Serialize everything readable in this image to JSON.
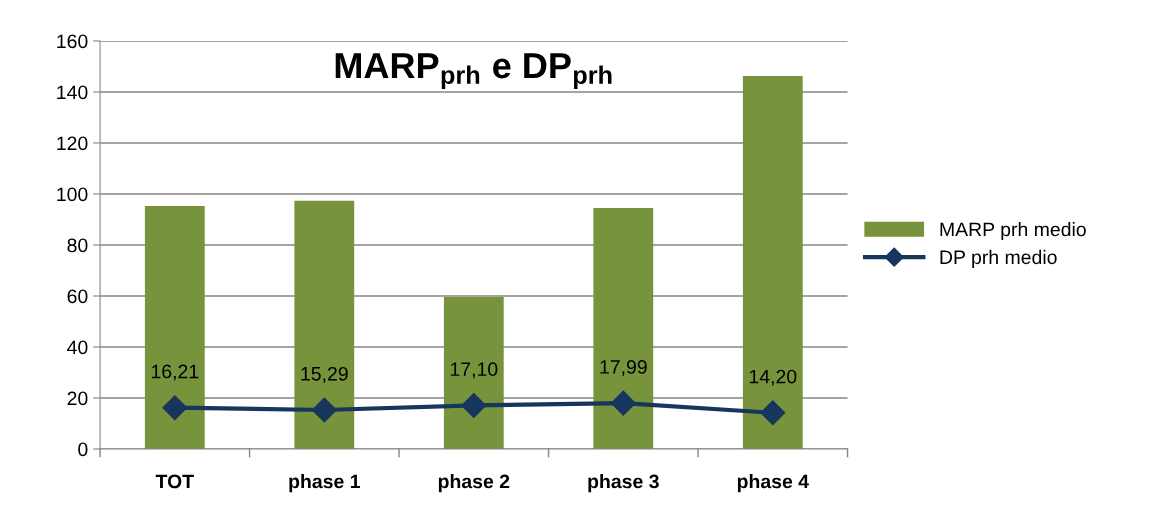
{
  "chart_data": {
    "type": "bar",
    "title": "MARP$_{prh}$ e DP$_{prh}$",
    "categories": [
      "TOT",
      "phase 1",
      "phase 2",
      "phase 3",
      "phase 4"
    ],
    "series": [
      {
        "name": "MARP prh medio",
        "color": "#77933c",
        "values": [
          95.3,
          97.3,
          59.6,
          94.5,
          146.3
        ]
      },
      {
        "name": "DP prh medio",
        "type": "line",
        "color": "#17365d",
        "values": [
          16.21,
          15.29,
          17.1,
          17.99,
          14.2
        ],
        "value_labels": [
          "16,21",
          "15,29",
          "17,10",
          "17,99",
          "14,20"
        ]
      }
    ],
    "ylim": [
      0,
      160
    ],
    "yticks": [
      0,
      20,
      40,
      60,
      80,
      100,
      120,
      140,
      160
    ],
    "grid": "y",
    "legend": "right",
    "marker": "diamond",
    "line_style": "solid"
  }
}
